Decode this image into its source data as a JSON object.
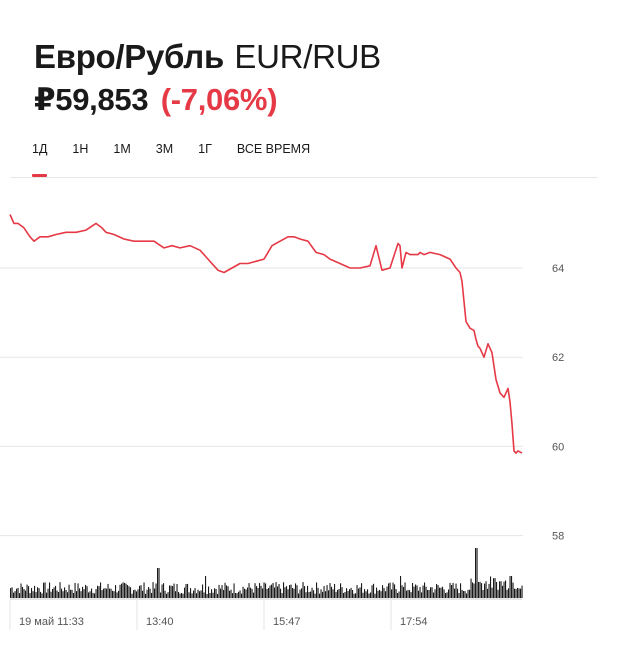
{
  "header": {
    "name": "Евро/Рубль",
    "ticker": "EUR/RUB",
    "price": "₽59,853",
    "change": "(-7,06%)"
  },
  "tabs": [
    {
      "label": "1Д",
      "active": true
    },
    {
      "label": "1Н",
      "active": false
    },
    {
      "label": "1М",
      "active": false
    },
    {
      "label": "3М",
      "active": false
    },
    {
      "label": "1Г",
      "active": false
    },
    {
      "label": "ВСЕ ВРЕМЯ",
      "active": false
    }
  ],
  "colors": {
    "accent": "#e63946",
    "line": "#e63946",
    "grid": "#e6e6e6",
    "volume": "#1a1a1a",
    "axis_text": "#555555"
  },
  "chart_data": {
    "type": "line",
    "ylim": [
      58,
      65.5
    ],
    "y_ticks": [
      64,
      62,
      60,
      58
    ],
    "y_tick_labels": [
      "64",
      "62",
      "60",
      "58"
    ],
    "x_ticks": [
      {
        "label": "19 май 11:33",
        "t": 0
      },
      {
        "label": "13:40",
        "t": 127
      },
      {
        "label": "15:47",
        "t": 254
      },
      {
        "label": "17:54",
        "t": 381
      }
    ],
    "x_range": [
      0,
      500
    ],
    "grid": true,
    "series": [
      {
        "t": [
          0,
          4,
          8,
          14,
          20,
          24,
          30,
          38,
          46,
          56,
          66,
          76,
          86,
          92,
          96,
          104,
          114,
          124,
          134,
          144,
          154,
          162,
          170,
          180,
          190,
          198,
          204,
          208,
          214,
          222,
          230,
          238,
          246,
          254,
          262,
          270,
          278,
          284,
          290,
          298,
          306,
          314,
          320,
          330,
          340,
          350,
          360,
          366,
          372,
          380,
          388,
          390,
          392,
          396,
          400,
          404,
          408,
          410,
          414,
          420,
          430,
          440,
          446,
          450,
          452,
          456,
          460,
          464,
          466,
          468,
          470,
          474,
          478,
          482,
          486,
          490,
          494,
          498,
          500,
          502,
          504,
          506,
          508,
          512
        ],
        "y": [
          65.2,
          65.0,
          65.0,
          64.9,
          64.7,
          64.6,
          64.7,
          64.7,
          64.75,
          64.8,
          64.8,
          64.85,
          65.0,
          64.9,
          64.8,
          64.75,
          64.65,
          64.6,
          64.6,
          64.6,
          64.45,
          64.5,
          64.45,
          64.5,
          64.4,
          64.2,
          64.05,
          63.95,
          63.9,
          64.0,
          64.1,
          64.1,
          64.15,
          64.2,
          64.5,
          64.6,
          64.7,
          64.7,
          64.65,
          64.6,
          64.35,
          64.3,
          64.2,
          64.1,
          64.0,
          64.0,
          64.05,
          64.5,
          63.95,
          64.0,
          64.55,
          64.5,
          64.0,
          64.35,
          64.3,
          64.3,
          64.3,
          64.35,
          64.3,
          64.35,
          64.3,
          64.2,
          64.0,
          63.9,
          63.7,
          62.8,
          62.65,
          62.6,
          62.4,
          62.25,
          62.2,
          62.0,
          62.3,
          62.1,
          61.5,
          61.2,
          61.1,
          61.3,
          61.0,
          60.5,
          59.9,
          59.85,
          59.9,
          59.85
        ]
      }
    ],
    "volume_series": {
      "t_start": 0,
      "t_end": 512
    }
  }
}
